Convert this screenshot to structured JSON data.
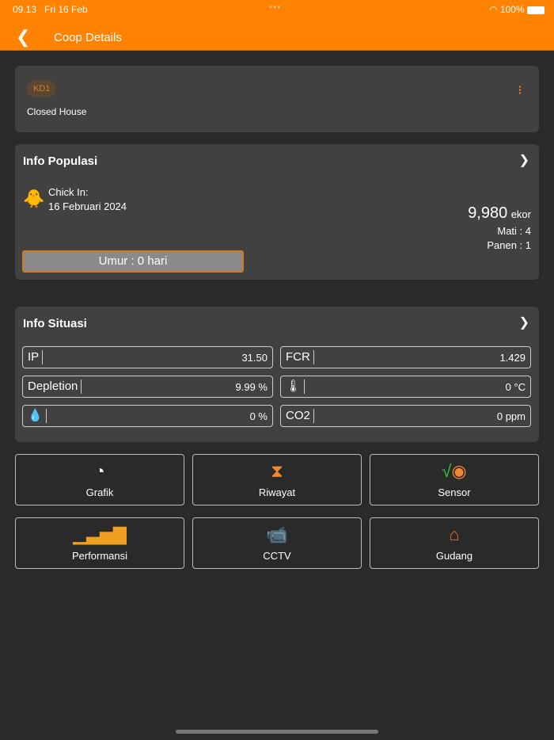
{
  "status": {
    "time": "09.13",
    "date": "Fri 16 Feb",
    "battery": "100%"
  },
  "header": {
    "title": "Coop Details",
    "back_icon": "chevron-left"
  },
  "coop": {
    "code": "KD1",
    "type": "Closed House"
  },
  "populasi": {
    "title": "Info Populasi",
    "chick_in_label": "Chick In:",
    "chick_in_date": "16 Februari 2024",
    "count": "9,980",
    "unit": "ekor",
    "mati": "Mati : 4",
    "panen": "Panen : 1",
    "umur": "Umur : 0 hari"
  },
  "situasi": {
    "title": "Info Situasi",
    "fields": [
      {
        "label": "IP",
        "value": "31.50"
      },
      {
        "label": "FCR",
        "value": "1.429"
      },
      {
        "label": "Depletion",
        "value": "9.99 %"
      },
      {
        "label": "🌡",
        "value": "0 °C",
        "icon": "thermometer"
      },
      {
        "label": "💧",
        "value": "0 %",
        "icon": "water-drop"
      },
      {
        "label": "CO2",
        "value": "0 ppm"
      }
    ]
  },
  "menu": [
    {
      "label": "Grafik",
      "icon": "pie-chart"
    },
    {
      "label": "Riwayat",
      "icon": "hourglass"
    },
    {
      "label": "Sensor",
      "icon": "sensor"
    },
    {
      "label": "Performansi",
      "icon": "growth-chart"
    },
    {
      "label": "CCTV",
      "icon": "cctv"
    },
    {
      "label": "Gudang",
      "icon": "barn"
    }
  ]
}
